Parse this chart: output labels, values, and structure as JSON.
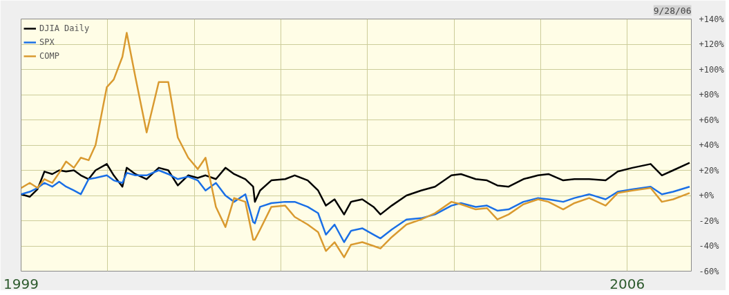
{
  "chart_data": {
    "type": "line",
    "x": [
      1999.0,
      1999.1,
      1999.19,
      1999.27,
      1999.36,
      1999.44,
      1999.52,
      1999.61,
      1999.69,
      1999.78,
      1999.86,
      1999.99,
      2000.07,
      2000.17,
      2000.22,
      2000.32,
      2000.45,
      2000.59,
      2000.7,
      2000.81,
      2000.93,
      2001.04,
      2001.13,
      2001.25,
      2001.36,
      2001.46,
      2001.59,
      2001.68,
      2001.7,
      2001.76,
      2001.89,
      2002.05,
      2002.16,
      2002.31,
      2002.43,
      2002.52,
      2002.62,
      2002.73,
      2002.81,
      2002.94,
      2003.07,
      2003.15,
      2003.28,
      2003.45,
      2003.62,
      2003.78,
      2003.97,
      2004.08,
      2004.25,
      2004.38,
      2004.5,
      2004.63,
      2004.8,
      2004.97,
      2005.09,
      2005.26,
      2005.39,
      2005.56,
      2005.75,
      2005.89,
      2006.06,
      2006.27,
      2006.4,
      2006.53,
      2006.72
    ],
    "series": [
      {
        "name": "DJIA Daily",
        "color": "#000000",
        "values": [
          1,
          -1,
          5,
          19,
          17,
          20,
          19,
          20,
          16,
          13,
          20,
          25,
          16,
          7,
          22,
          17,
          13,
          22,
          20,
          8,
          16,
          14,
          16,
          13,
          22,
          17,
          13,
          7,
          -5,
          4,
          12,
          13,
          16,
          12,
          4,
          -8,
          -3,
          -15,
          -5,
          -3,
          -9,
          -15,
          -8,
          0,
          4,
          7,
          16,
          17,
          13,
          12,
          8,
          7,
          13,
          16,
          17,
          12,
          13,
          13,
          12,
          19,
          22,
          25,
          16,
          20,
          26
        ]
      },
      {
        "name": "SPX",
        "color": "#1a6fe6",
        "values": [
          1,
          3,
          6,
          10,
          7,
          11,
          7,
          4,
          1,
          13,
          14,
          16,
          12,
          10,
          18,
          16,
          16,
          20,
          17,
          13,
          15,
          12,
          4,
          10,
          0,
          -5,
          1,
          -21,
          -22,
          -9,
          -6,
          -5,
          -5,
          -9,
          -14,
          -31,
          -23,
          -37,
          -28,
          -26,
          -31,
          -34,
          -27,
          -19,
          -18,
          -15,
          -8,
          -6,
          -9,
          -8,
          -12,
          -11,
          -5,
          -2,
          -3,
          -5,
          -2,
          1,
          -3,
          3,
          5,
          7,
          1,
          3,
          7
        ]
      },
      {
        "name": "COMP",
        "color": "#d99a30",
        "values": [
          6,
          10,
          6,
          13,
          10,
          18,
          27,
          22,
          30,
          28,
          40,
          86,
          92,
          110,
          129,
          94,
          50,
          90,
          90,
          46,
          30,
          21,
          30,
          -9,
          -25,
          -2,
          -5,
          -35,
          -35,
          -27,
          -9,
          -8,
          -17,
          -23,
          -29,
          -44,
          -37,
          -49,
          -39,
          -37,
          -40,
          -42,
          -33,
          -23,
          -19,
          -14,
          -5,
          -7,
          -11,
          -10,
          -19,
          -15,
          -7,
          -3,
          -5,
          -11,
          -6,
          -2,
          -8,
          2,
          4,
          6,
          -5,
          -3,
          2
        ]
      }
    ],
    "xlim": [
      1999.0,
      2006.74
    ],
    "xticks": [
      {
        "value": 1999,
        "label": "1999"
      },
      {
        "value": 2000,
        "label": null
      },
      {
        "value": 2001,
        "label": null
      },
      {
        "value": 2002,
        "label": null
      },
      {
        "value": 2003,
        "label": null
      },
      {
        "value": 2004,
        "label": null
      },
      {
        "value": 2005,
        "label": null
      },
      {
        "value": 2006,
        "label": "2006"
      }
    ],
    "ylim": [
      -60,
      140
    ],
    "yticks": [
      {
        "value": -60,
        "label": "-60%"
      },
      {
        "value": -40,
        "label": "-40%"
      },
      {
        "value": -20,
        "label": "-20%"
      },
      {
        "value": 0,
        "label": "+0%"
      },
      {
        "value": 20,
        "label": "+20%"
      },
      {
        "value": 40,
        "label": "+40%"
      },
      {
        "value": 60,
        "label": "+60%"
      },
      {
        "value": 80,
        "label": "+80%"
      },
      {
        "value": 100,
        "label": "+100%"
      },
      {
        "value": 120,
        "label": "+120%"
      },
      {
        "value": 140,
        "label": "+140%"
      }
    ],
    "annotations": [
      "9/28/06"
    ],
    "grid": true,
    "legend": "top left",
    "marker": "none",
    "line_style": "solid"
  }
}
